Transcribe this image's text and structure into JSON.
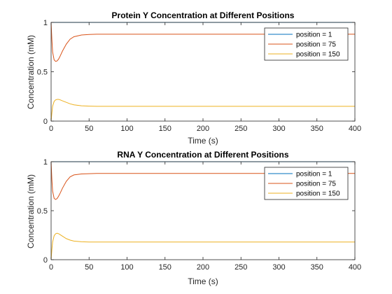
{
  "chart_data": [
    {
      "type": "line",
      "title": "Protein Y Concentration at Different Positions",
      "xlabel": "Time (s)",
      "ylabel": "Concentration (mM)",
      "xlim": [
        0,
        400
      ],
      "ylim": [
        0,
        1
      ],
      "xticks": [
        0,
        50,
        100,
        150,
        200,
        250,
        300,
        350,
        400
      ],
      "yticks": [
        0,
        0.5,
        1
      ],
      "ytick_labels": [
        "0",
        "0.5",
        "1"
      ],
      "grid": false,
      "legend_position": "top-right",
      "series": [
        {
          "name": "position = 1",
          "color": "#0072BD",
          "x": [
            0,
            400
          ],
          "y": [
            1,
            1
          ]
        },
        {
          "name": "position = 75",
          "color": "#D95319",
          "x": [
            0,
            1,
            2,
            4,
            6,
            8,
            10,
            12,
            15,
            20,
            25,
            30,
            40,
            50,
            60,
            80,
            100,
            150,
            200,
            300,
            400
          ],
          "y": [
            1,
            0.83,
            0.7,
            0.62,
            0.605,
            0.61,
            0.63,
            0.66,
            0.71,
            0.78,
            0.83,
            0.855,
            0.872,
            0.878,
            0.88,
            0.88,
            0.88,
            0.88,
            0.88,
            0.88,
            0.88
          ]
        },
        {
          "name": "position = 150",
          "color": "#EDB120",
          "x": [
            0,
            1,
            2,
            4,
            6,
            8,
            10,
            12,
            15,
            20,
            25,
            30,
            40,
            50,
            60,
            80,
            100,
            150,
            200,
            300,
            400
          ],
          "y": [
            0,
            0.08,
            0.15,
            0.2,
            0.215,
            0.22,
            0.22,
            0.215,
            0.205,
            0.19,
            0.175,
            0.165,
            0.155,
            0.152,
            0.15,
            0.15,
            0.15,
            0.15,
            0.15,
            0.15,
            0.15
          ]
        }
      ]
    },
    {
      "type": "line",
      "title": "RNA Y Concentration at Different Positions",
      "xlabel": "Time (s)",
      "ylabel": "Concentration (mM)",
      "xlim": [
        0,
        400
      ],
      "ylim": [
        0,
        1
      ],
      "xticks": [
        0,
        50,
        100,
        150,
        200,
        250,
        300,
        350,
        400
      ],
      "yticks": [
        0,
        0.5,
        1
      ],
      "ytick_labels": [
        "0",
        "0.5",
        "1"
      ],
      "grid": false,
      "legend_position": "top-right",
      "series": [
        {
          "name": "position = 1",
          "color": "#0072BD",
          "x": [
            0,
            400
          ],
          "y": [
            1,
            1
          ]
        },
        {
          "name": "position = 75",
          "color": "#D95319",
          "x": [
            0,
            1,
            2,
            4,
            6,
            8,
            10,
            12,
            15,
            20,
            25,
            30,
            40,
            50,
            60,
            80,
            100,
            150,
            200,
            300,
            400
          ],
          "y": [
            1,
            0.82,
            0.7,
            0.625,
            0.615,
            0.625,
            0.65,
            0.68,
            0.73,
            0.8,
            0.845,
            0.865,
            0.875,
            0.878,
            0.88,
            0.88,
            0.88,
            0.88,
            0.88,
            0.88,
            0.88
          ]
        },
        {
          "name": "position = 150",
          "color": "#EDB120",
          "x": [
            0,
            1,
            2,
            4,
            6,
            8,
            10,
            12,
            15,
            20,
            25,
            30,
            40,
            50,
            60,
            80,
            100,
            150,
            200,
            300,
            400
          ],
          "y": [
            0,
            0.1,
            0.18,
            0.245,
            0.265,
            0.27,
            0.265,
            0.255,
            0.24,
            0.215,
            0.2,
            0.19,
            0.183,
            0.18,
            0.18,
            0.18,
            0.18,
            0.18,
            0.18,
            0.18,
            0.18
          ]
        }
      ]
    }
  ]
}
